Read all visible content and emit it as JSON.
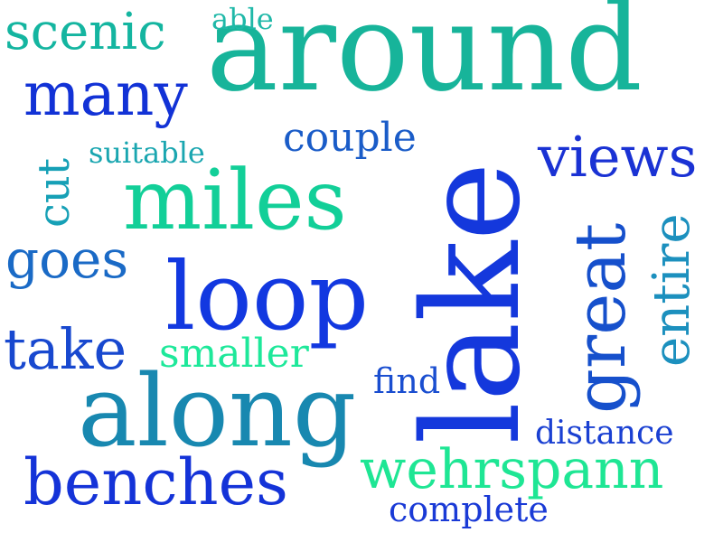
{
  "words": {
    "around": {
      "text": "around",
      "color": "#17b49a"
    },
    "scenic": {
      "text": "scenic",
      "color": "#14b5a0"
    },
    "able": {
      "text": "able",
      "color": "#1fb8a8"
    },
    "many": {
      "text": "many",
      "color": "#1232d6"
    },
    "couple": {
      "text": "couple",
      "color": "#1a5cc8"
    },
    "suitable": {
      "text": "suitable",
      "color": "#1aa6b0"
    },
    "cut": {
      "text": "cut",
      "color": "#16a0b6"
    },
    "miles": {
      "text": "miles",
      "color": "#12cf98"
    },
    "views": {
      "text": "views",
      "color": "#1a32d4"
    },
    "goes": {
      "text": "goes",
      "color": "#1a6ac6"
    },
    "loop": {
      "text": "loop",
      "color": "#1238e0"
    },
    "lake": {
      "text": "lake",
      "color": "#1438dc"
    },
    "great": {
      "text": "great",
      "color": "#1650cc"
    },
    "entire": {
      "text": "entire",
      "color": "#1c90be"
    },
    "take": {
      "text": "take",
      "color": "#1848cf"
    },
    "smaller": {
      "text": "smaller",
      "color": "#1ee89a"
    },
    "find": {
      "text": "find",
      "color": "#1a4ed0"
    },
    "along": {
      "text": "along",
      "color": "#1888b0"
    },
    "distance": {
      "text": "distance",
      "color": "#1a40d2"
    },
    "wehrspann": {
      "text": "wehrspann",
      "color": "#1ee694"
    },
    "benches": {
      "text": "benches",
      "color": "#1433d8"
    },
    "complete": {
      "text": "complete",
      "color": "#1a3ad6"
    }
  }
}
